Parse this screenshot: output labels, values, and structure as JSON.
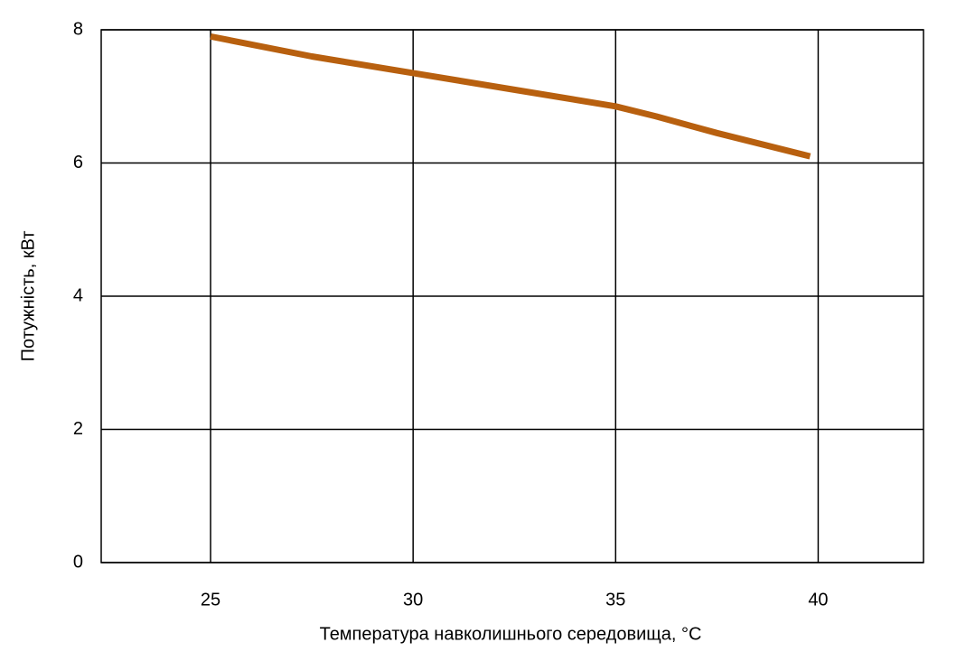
{
  "chart_data": {
    "type": "line",
    "x_label": "Температура навколишнього середовища, °C",
    "y_label": "Потужність, кВт",
    "x": [
      25,
      27.5,
      30,
      32.5,
      35,
      36,
      37.5,
      39.8
    ],
    "series": [
      {
        "color": "#b8600f",
        "values": [
          7.9,
          7.6,
          7.35,
          7.1,
          6.85,
          6.7,
          6.45,
          6.1
        ]
      }
    ],
    "xlim": [
      22.3,
      42.6
    ],
    "xticks": [
      25,
      30,
      35,
      40
    ],
    "ylim": [
      0,
      8
    ],
    "yticks": [
      0,
      2,
      4,
      6,
      8
    ],
    "grid": true
  }
}
